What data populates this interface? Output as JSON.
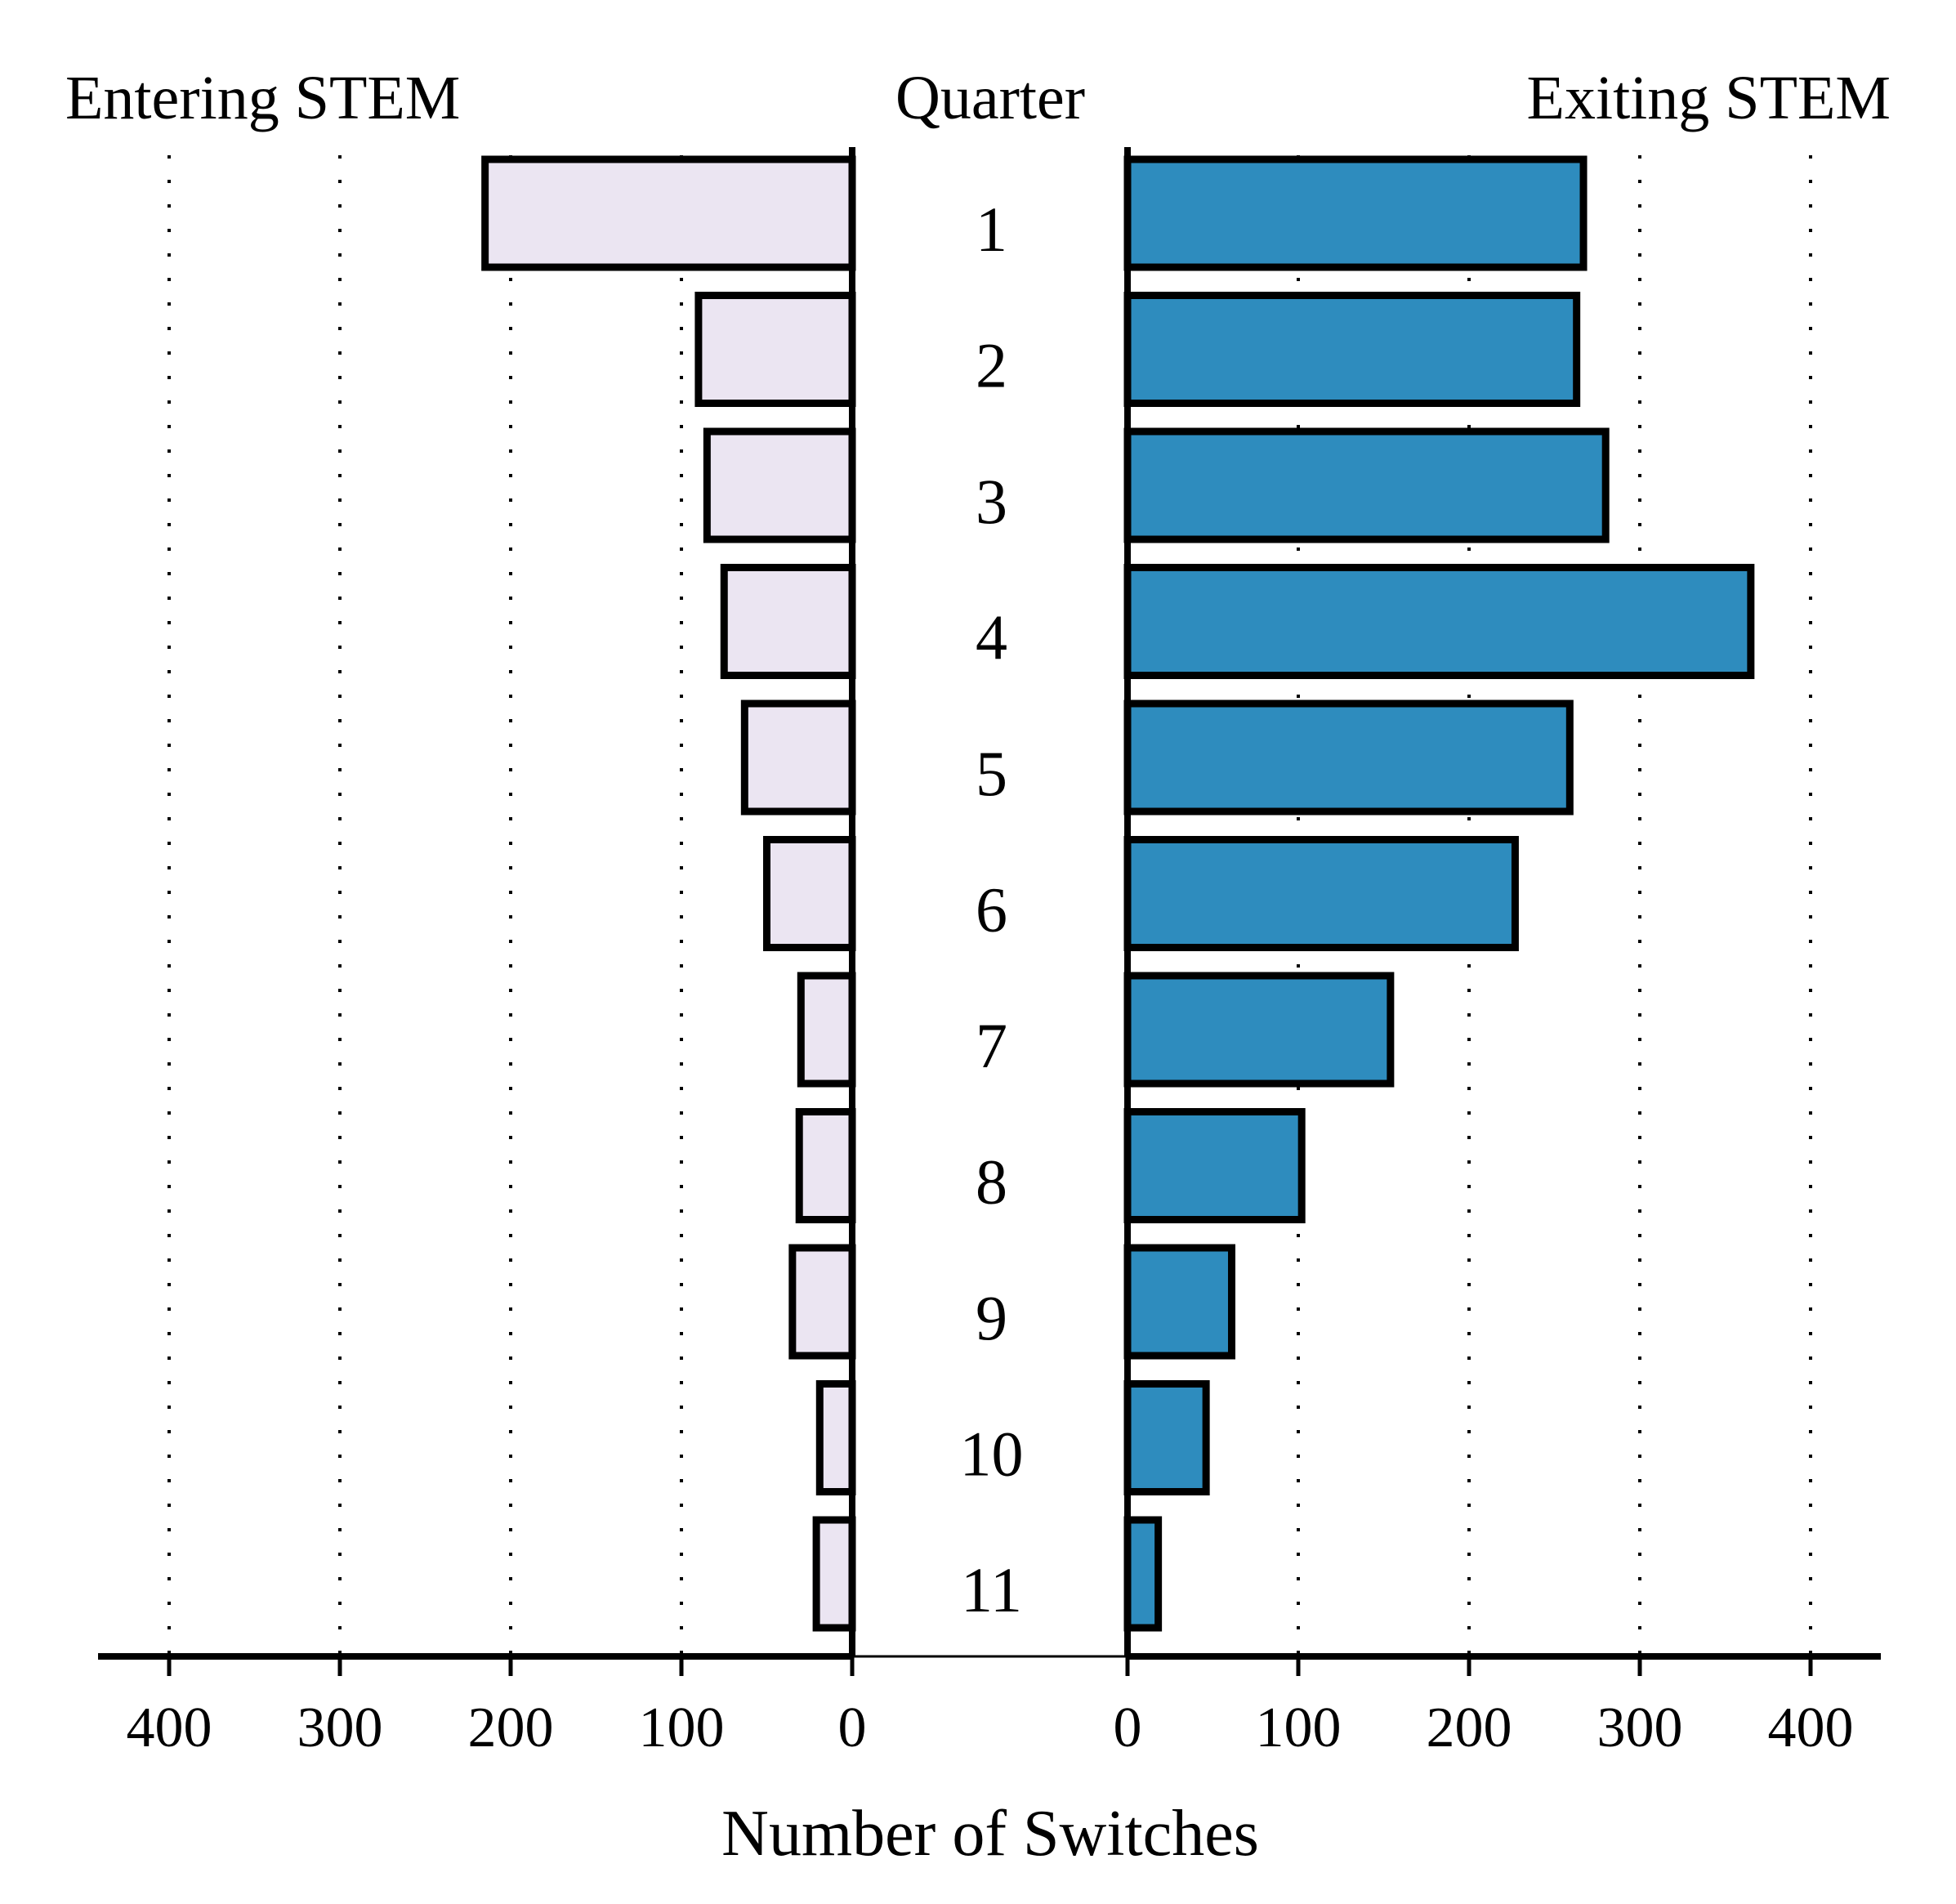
{
  "headers": {
    "left": "Entering STEM",
    "center": "Quarter",
    "right": "Exiting STEM"
  },
  "colors": {
    "entering": "#ebe5f2",
    "exiting": "#2e8cbe"
  },
  "chart_data": {
    "type": "bar",
    "orientation": "horizontal-back-to-back",
    "xlabel": "Number of Switches",
    "xlim": [
      0,
      400
    ],
    "xticks": [
      "400",
      "300",
      "200",
      "100",
      "0"
    ],
    "xticks_right": [
      "0",
      "100",
      "200",
      "300",
      "400"
    ],
    "grid": "vertical dotted",
    "categories": [
      "1",
      "2",
      "3",
      "4",
      "5",
      "6",
      "7",
      "8",
      "9",
      "10",
      "11"
    ],
    "series": [
      {
        "name": "Entering STEM",
        "values": [
          215,
          90,
          85,
          75,
          63,
          50,
          30,
          31,
          35,
          19,
          21
        ]
      },
      {
        "name": "Exiting STEM",
        "values": [
          267,
          263,
          280,
          365,
          259,
          227,
          154,
          102,
          61,
          46,
          18
        ]
      }
    ]
  }
}
